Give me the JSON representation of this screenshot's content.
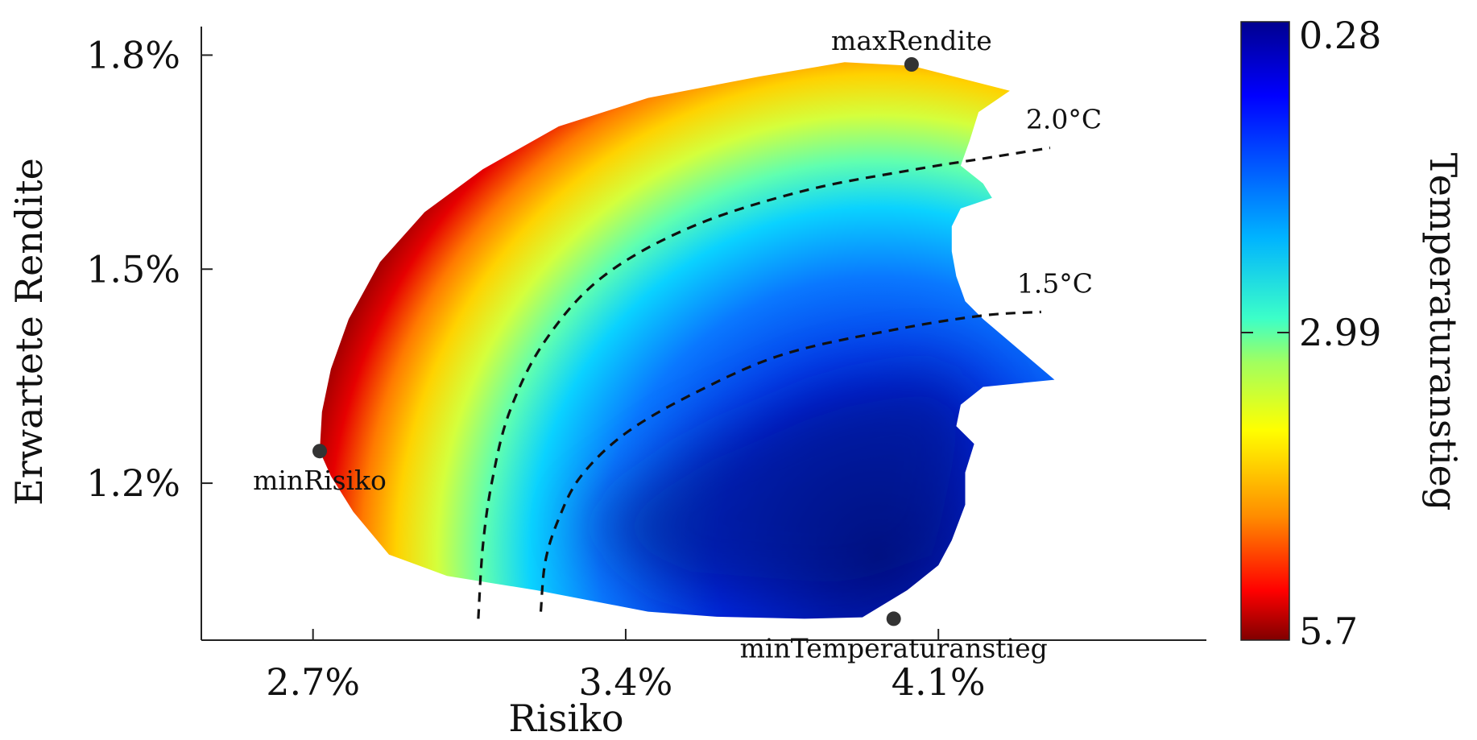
{
  "chart_data": {
    "type": "area",
    "title": "",
    "xlabel": "Risiko",
    "ylabel": "Erwartete Rendite",
    "xlim": [
      2.45,
      4.7
    ],
    "ylim": [
      0.98,
      1.84
    ],
    "x_ticks": [
      {
        "value": 2.7,
        "label": "2.7%"
      },
      {
        "value": 3.4,
        "label": "3.4%"
      },
      {
        "value": 4.1,
        "label": "4.1%"
      }
    ],
    "y_ticks": [
      {
        "value": 1.2,
        "label": "1.2%"
      },
      {
        "value": 1.5,
        "label": "1.5%"
      },
      {
        "value": 1.8,
        "label": "1.8%"
      }
    ],
    "colorbar": {
      "label": "Temperaturanstieg",
      "ticks": [
        {
          "value": 0.28,
          "label": "0.28"
        },
        {
          "value": 2.99,
          "label": "2.99"
        },
        {
          "value": 5.7,
          "label": "5.7"
        }
      ],
      "range": [
        0.28,
        5.7
      ],
      "colormap": "jet",
      "min_color": "#00008f",
      "max_color": "#800000"
    },
    "feasible_region": {
      "outer_boundary": [
        [
          2.715,
          1.245
        ],
        [
          2.72,
          1.3
        ],
        [
          2.74,
          1.36
        ],
        [
          2.78,
          1.43
        ],
        [
          2.85,
          1.51
        ],
        [
          2.95,
          1.58
        ],
        [
          3.08,
          1.64
        ],
        [
          3.25,
          1.7
        ],
        [
          3.45,
          1.74
        ],
        [
          3.7,
          1.77
        ],
        [
          3.89,
          1.79
        ],
        [
          4.04,
          1.785
        ],
        [
          4.26,
          1.75
        ],
        [
          4.19,
          1.72
        ],
        [
          4.17,
          1.68
        ],
        [
          4.15,
          1.645
        ],
        [
          4.2,
          1.62
        ],
        [
          4.22,
          1.6
        ],
        [
          4.15,
          1.585
        ],
        [
          4.13,
          1.56
        ],
        [
          4.13,
          1.525
        ],
        [
          4.14,
          1.49
        ],
        [
          4.16,
          1.455
        ],
        [
          4.2,
          1.43
        ],
        [
          4.36,
          1.345
        ],
        [
          4.2,
          1.335
        ],
        [
          4.15,
          1.31
        ],
        [
          4.14,
          1.28
        ],
        [
          4.18,
          1.255
        ],
        [
          4.16,
          1.215
        ],
        [
          4.16,
          1.17
        ],
        [
          4.13,
          1.12
        ],
        [
          4.1,
          1.085
        ],
        [
          4.03,
          1.05
        ],
        [
          3.93,
          1.012
        ],
        [
          3.8,
          1.01
        ],
        [
          3.6,
          1.013
        ],
        [
          3.45,
          1.02
        ],
        [
          3.2,
          1.05
        ],
        [
          3.0,
          1.07
        ],
        [
          2.87,
          1.1
        ],
        [
          2.79,
          1.16
        ],
        [
          2.74,
          1.21
        ],
        [
          2.715,
          1.245
        ]
      ],
      "cold_core": [
        [
          3.3,
          1.14
        ],
        [
          3.55,
          1.25
        ],
        [
          3.85,
          1.33
        ],
        [
          4.1,
          1.36
        ],
        [
          4.2,
          1.3
        ],
        [
          4.13,
          1.08
        ],
        [
          3.9,
          1.03
        ],
        [
          3.5,
          1.05
        ],
        [
          3.3,
          1.14
        ]
      ]
    },
    "contours": [
      {
        "name": "2.0°C",
        "points": [
          [
            3.07,
            1.01
          ],
          [
            3.08,
            1.11
          ],
          [
            3.1,
            1.2
          ],
          [
            3.14,
            1.3
          ],
          [
            3.22,
            1.4
          ],
          [
            3.35,
            1.49
          ],
          [
            3.55,
            1.56
          ],
          [
            3.8,
            1.61
          ],
          [
            4.05,
            1.64
          ],
          [
            4.2,
            1.655
          ],
          [
            4.35,
            1.67
          ]
        ]
      },
      {
        "name": "1.5°C",
        "points": [
          [
            3.21,
            1.02
          ],
          [
            3.22,
            1.09
          ],
          [
            3.25,
            1.15
          ],
          [
            3.3,
            1.21
          ],
          [
            3.4,
            1.27
          ],
          [
            3.55,
            1.325
          ],
          [
            3.75,
            1.38
          ],
          [
            4.0,
            1.415
          ],
          [
            4.2,
            1.435
          ],
          [
            4.33,
            1.44
          ]
        ]
      }
    ],
    "points": [
      {
        "name": "maxRendite",
        "x": 4.04,
        "y": 1.787,
        "label_position": "above"
      },
      {
        "name": "minRisiko",
        "x": 2.715,
        "y": 1.245,
        "label_position": "below"
      },
      {
        "name": "minTemperaturanstieg",
        "x": 4.0,
        "y": 1.01,
        "label_position": "below"
      }
    ],
    "grid": false,
    "legend": "none"
  }
}
